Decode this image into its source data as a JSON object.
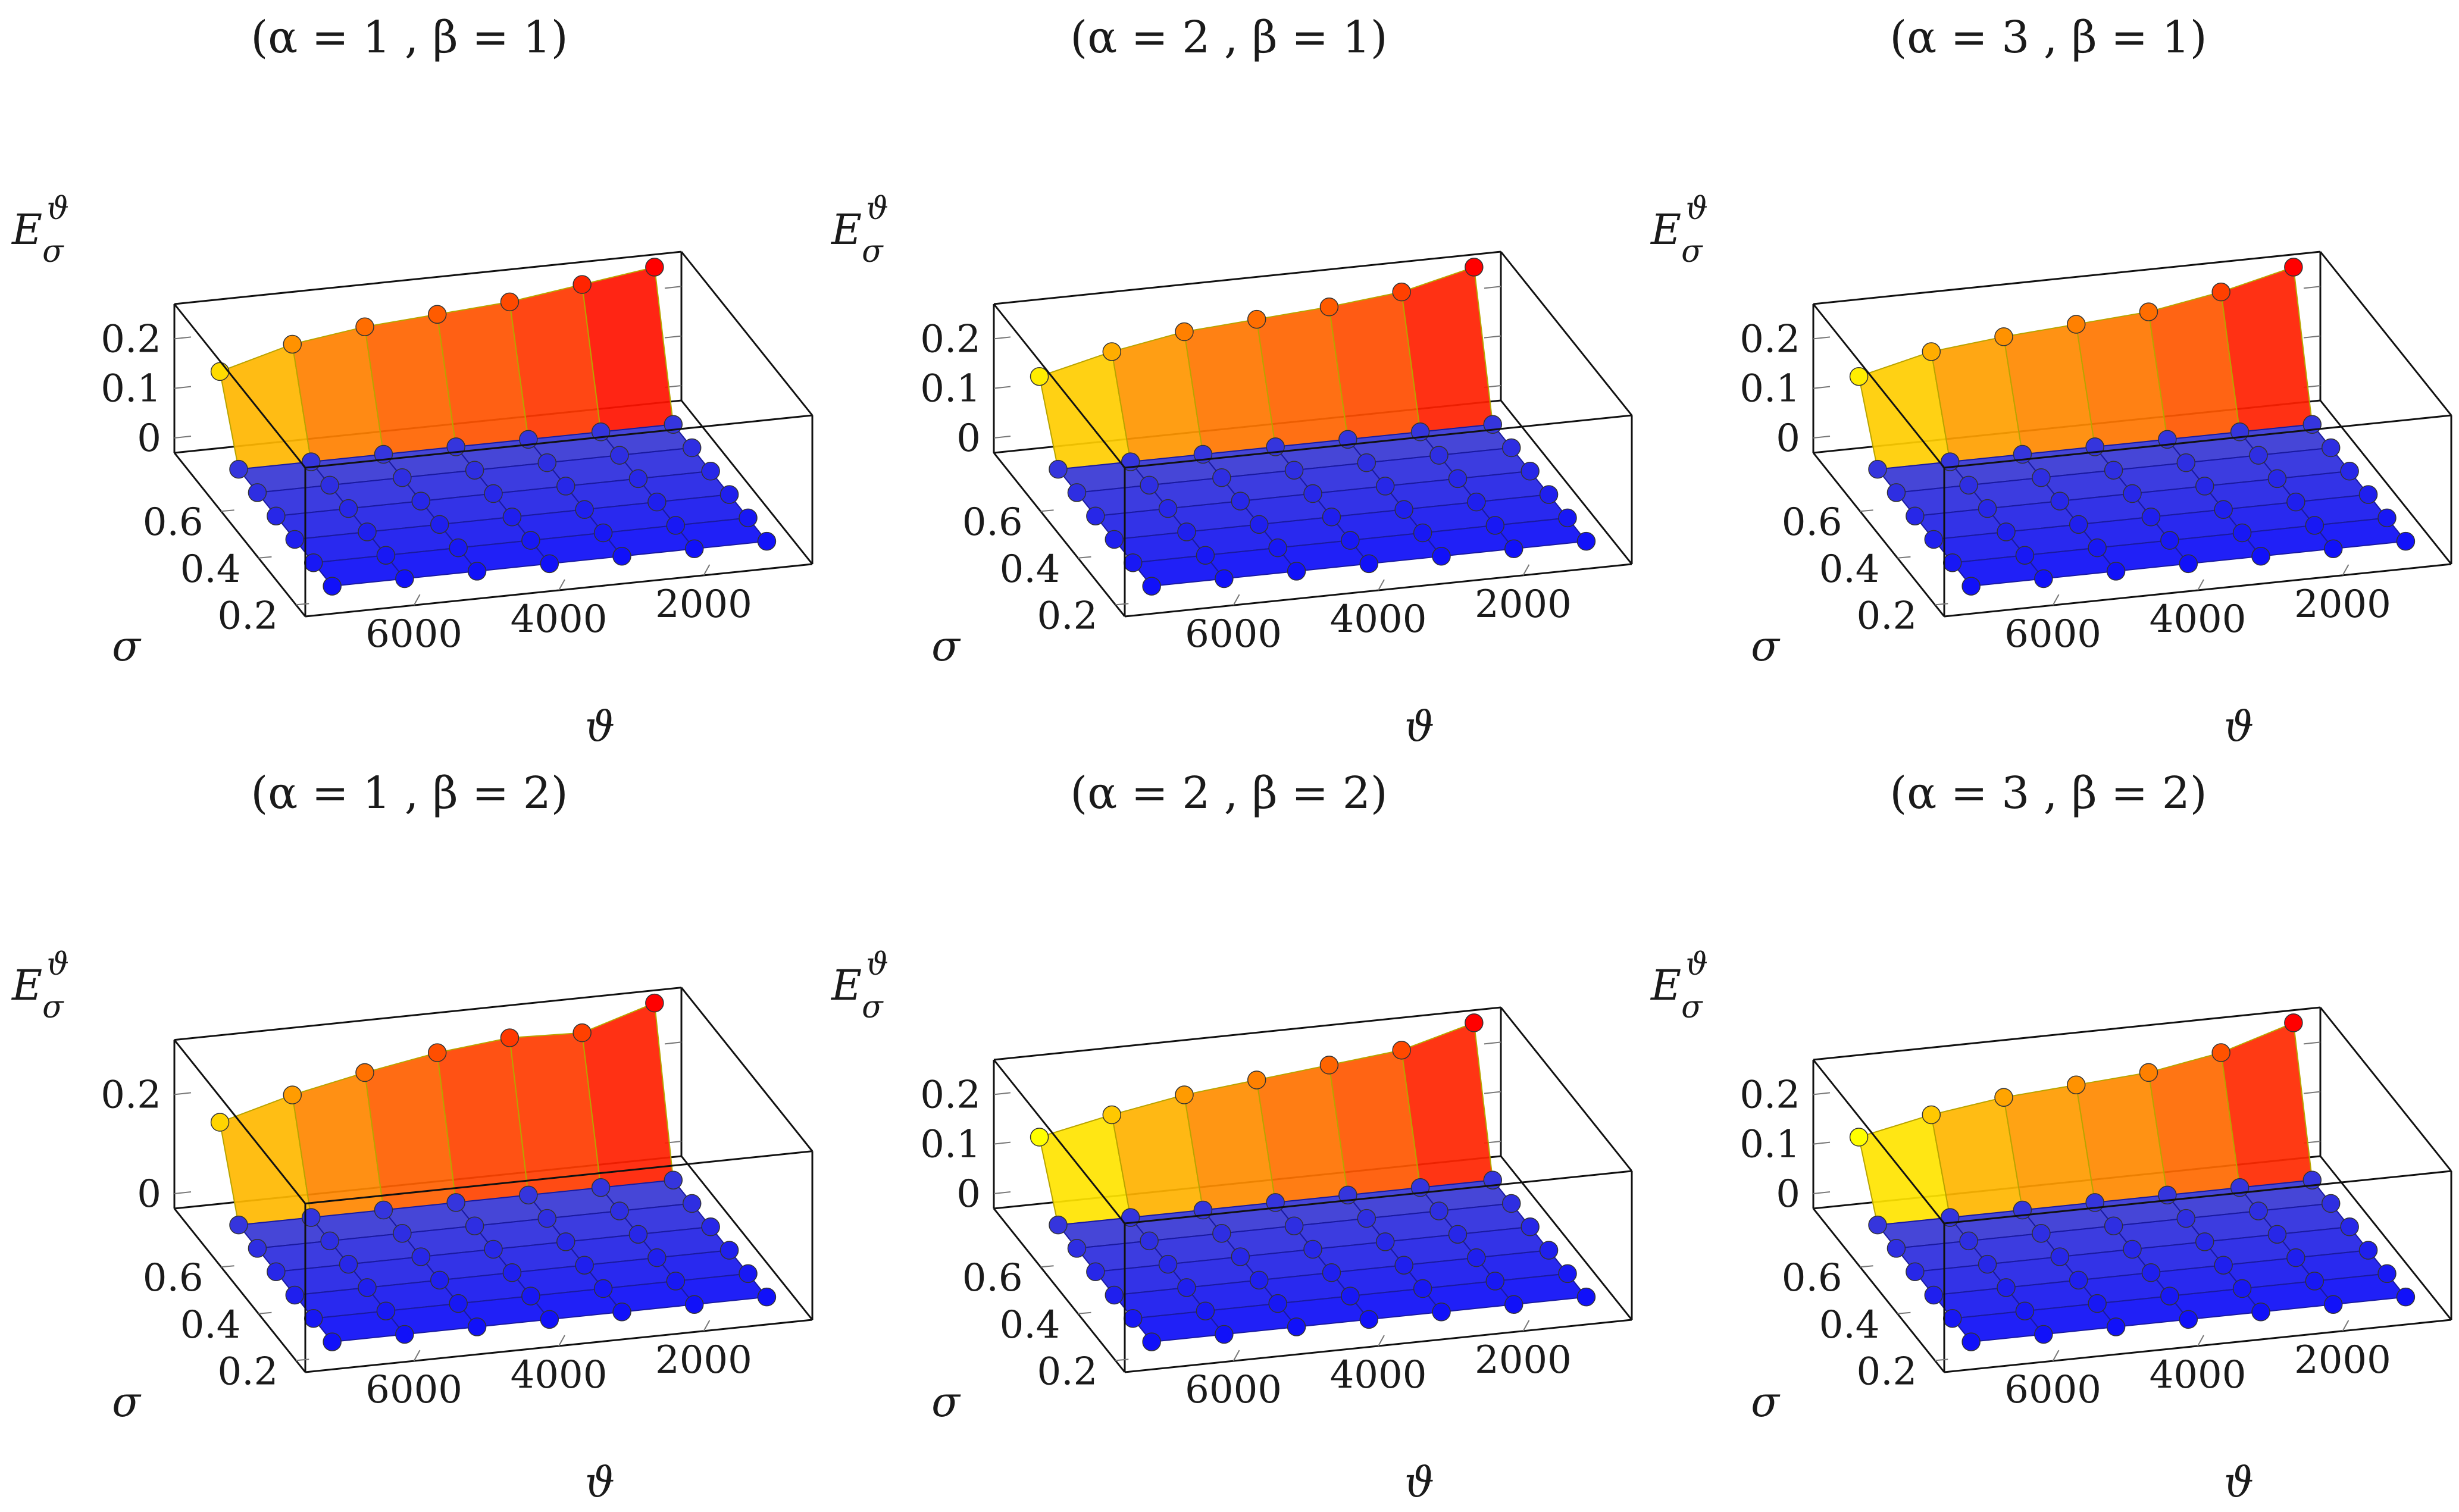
{
  "chart_data": [
    {
      "type": "surface3d",
      "title": "(α = 1 , β = 1)",
      "xlabel": "ϑ",
      "ylabel": "σ",
      "zlabel": "Eσϑ",
      "theta": [
        7000,
        6000,
        5000,
        4000,
        3000,
        2000,
        1000
      ],
      "sigma": [
        0.8,
        0.7,
        0.6,
        0.5,
        0.4,
        0.3,
        0.2
      ],
      "z_back": [
        0.15,
        0.19,
        0.21,
        0.22,
        0.23,
        0.25,
        0.27
      ],
      "theta_ticks": [
        "6000",
        "4000",
        "2000"
      ],
      "sigma_ticks": [
        "0.6",
        "0.4",
        "0.2"
      ],
      "z_ticks": [
        "0",
        "0.1",
        "0.2"
      ],
      "zlim": [
        -0.03,
        0.27
      ]
    },
    {
      "type": "surface3d",
      "title": "(α = 2 , β = 1)",
      "xlabel": "ϑ",
      "ylabel": "σ",
      "zlabel": "Eσϑ",
      "theta": [
        7000,
        6000,
        5000,
        4000,
        3000,
        2000,
        1000
      ],
      "sigma": [
        0.8,
        0.7,
        0.6,
        0.5,
        0.4,
        0.3,
        0.2
      ],
      "z_back": [
        0.14,
        0.175,
        0.2,
        0.21,
        0.22,
        0.235,
        0.27
      ],
      "theta_ticks": [
        "6000",
        "4000",
        "2000"
      ],
      "sigma_ticks": [
        "0.6",
        "0.4",
        "0.2"
      ],
      "z_ticks": [
        "0",
        "0.1",
        "0.2"
      ],
      "zlim": [
        -0.03,
        0.27
      ]
    },
    {
      "type": "surface3d",
      "title": "(α = 3 , β = 1)",
      "xlabel": "ϑ",
      "ylabel": "σ",
      "zlabel": "Eσϑ",
      "theta": [
        7000,
        6000,
        5000,
        4000,
        3000,
        2000,
        1000
      ],
      "sigma": [
        0.8,
        0.7,
        0.6,
        0.5,
        0.4,
        0.3,
        0.2
      ],
      "z_back": [
        0.14,
        0.175,
        0.19,
        0.2,
        0.21,
        0.235,
        0.27
      ],
      "theta_ticks": [
        "6000",
        "4000",
        "2000"
      ],
      "sigma_ticks": [
        "0.6",
        "0.4",
        "0.2"
      ],
      "z_ticks": [
        "0",
        "0.1",
        "0.2"
      ],
      "zlim": [
        -0.03,
        0.27
      ]
    },
    {
      "type": "surface3d",
      "title": "(α = 1 , β = 2)",
      "xlabel": "ϑ",
      "ylabel": "σ",
      "zlabel": "Eσϑ",
      "theta": [
        7000,
        6000,
        5000,
        4000,
        3000,
        2000,
        1000
      ],
      "sigma": [
        0.8,
        0.7,
        0.6,
        0.5,
        0.4,
        0.3,
        0.2
      ],
      "z_back": [
        0.16,
        0.2,
        0.23,
        0.255,
        0.27,
        0.265,
        0.31
      ],
      "theta_ticks": [
        "6000",
        "4000",
        "2000"
      ],
      "sigma_ticks": [
        "0.6",
        "0.4",
        "0.2"
      ],
      "z_ticks": [
        "0",
        "0.2"
      ],
      "zlim": [
        -0.03,
        0.31
      ]
    },
    {
      "type": "surface3d",
      "title": "(α = 2 , β = 2)",
      "xlabel": "ϑ",
      "ylabel": "σ",
      "zlabel": "Eσϑ",
      "theta": [
        7000,
        6000,
        5000,
        4000,
        3000,
        2000,
        1000
      ],
      "sigma": [
        0.8,
        0.7,
        0.6,
        0.5,
        0.4,
        0.3,
        0.2
      ],
      "z_back": [
        0.13,
        0.16,
        0.185,
        0.2,
        0.215,
        0.23,
        0.27
      ],
      "theta_ticks": [
        "6000",
        "4000",
        "2000"
      ],
      "sigma_ticks": [
        "0.6",
        "0.4",
        "0.2"
      ],
      "z_ticks": [
        "0",
        "0.1",
        "0.2"
      ],
      "zlim": [
        -0.03,
        0.27
      ]
    },
    {
      "type": "surface3d",
      "title": "(α = 3 , β = 2)",
      "xlabel": "ϑ",
      "ylabel": "σ",
      "zlabel": "Eσϑ",
      "theta": [
        7000,
        6000,
        5000,
        4000,
        3000,
        2000,
        1000
      ],
      "sigma": [
        0.8,
        0.7,
        0.6,
        0.5,
        0.4,
        0.3,
        0.2
      ],
      "z_back": [
        0.13,
        0.16,
        0.18,
        0.19,
        0.2,
        0.225,
        0.27
      ],
      "theta_ticks": [
        "6000",
        "4000",
        "2000"
      ],
      "sigma_ticks": [
        "0.6",
        "0.4",
        "0.2"
      ],
      "z_ticks": [
        "0",
        "0.1",
        "0.2"
      ],
      "zlim": [
        -0.03,
        0.27
      ]
    }
  ],
  "colormap": {
    "low": "#0000ff",
    "mid": "#ffff00",
    "high": "#ff0000"
  }
}
